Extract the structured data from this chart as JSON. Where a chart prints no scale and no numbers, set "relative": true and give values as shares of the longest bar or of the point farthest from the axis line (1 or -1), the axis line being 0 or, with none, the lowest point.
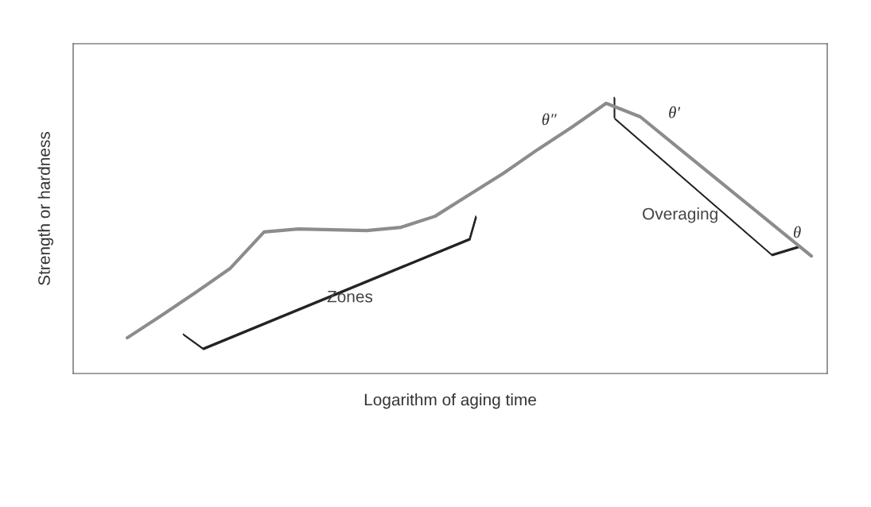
{
  "chart_data": {
    "type": "line",
    "relative": true,
    "xlabel": "Logarithm of aging time",
    "ylabel": "Strength or hardness",
    "tick_labels": false,
    "grid": false,
    "categories": [
      null,
      null,
      null,
      null,
      null,
      null,
      null,
      null,
      null,
      null,
      null,
      null,
      null,
      null,
      null,
      null,
      null,
      null,
      null,
      null,
      null
    ],
    "series": [
      {
        "color": "#8c8c8c",
        "values": [
          0.132,
          0.215,
          0.3,
          0.388,
          0.524,
          0.535,
          0.532,
          0.529,
          0.541,
          0.582,
          0.662,
          0.741,
          0.829,
          0.912,
          1.0,
          0.95,
          0.847,
          0.744,
          0.641,
          0.538,
          0.435
        ]
      }
    ],
    "annotations": [
      "θ″",
      "θ′",
      "θ",
      "Overaging",
      "Zones"
    ]
  }
}
